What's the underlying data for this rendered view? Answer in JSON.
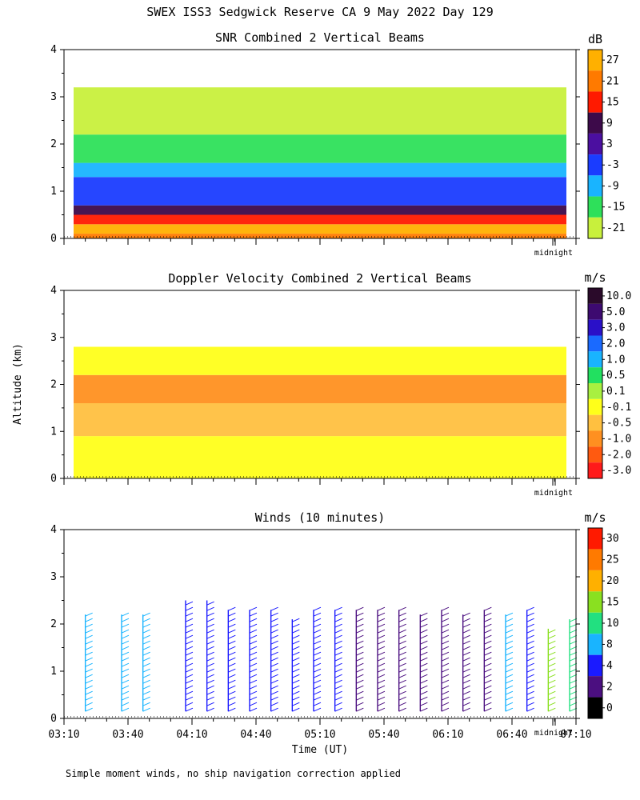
{
  "title": "SWEX ISS3 Sedgwick Reserve CA   9 May 2022 Day 129",
  "ylabel": "Altitude (km)",
  "xlabel": "Time (UT)",
  "midnight_label": "midnight",
  "footnote": "Simple moment winds, no ship navigation correction applied",
  "x_ticks": [
    "03:10",
    "03:40",
    "04:10",
    "04:40",
    "05:10",
    "05:40",
    "06:10",
    "06:40",
    "07:10"
  ],
  "chart_data": [
    {
      "type": "heatmap",
      "title": "SNR Combined 2 Vertical Beams",
      "unit": "dB",
      "xlim": [
        "03:10",
        "07:10"
      ],
      "ylim": [
        0,
        4
      ],
      "y_ticks": [
        "0",
        "1",
        "2",
        "3",
        "4"
      ],
      "colorbar": {
        "labels": [
          "27",
          "21",
          "15",
          "9",
          "3",
          "-3",
          "-9",
          "-15",
          "-21"
        ],
        "colors": [
          "#ffb000",
          "#ff7a00",
          "#ff1a00",
          "#3d0a4a",
          "#4b0fa0",
          "#1a3cff",
          "#19b4ff",
          "#2ee05a",
          "#c8f03c"
        ]
      },
      "layers": [
        {
          "from_km": 0.0,
          "to_km": 0.1,
          "level": "21"
        },
        {
          "from_km": 0.1,
          "to_km": 0.3,
          "level": "27"
        },
        {
          "from_km": 0.3,
          "to_km": 0.5,
          "level": "15"
        },
        {
          "from_km": 0.5,
          "to_km": 0.7,
          "level": "9"
        },
        {
          "from_km": 0.7,
          "to_km": 1.3,
          "level": "-3"
        },
        {
          "from_km": 1.3,
          "to_km": 1.6,
          "level": "-9"
        },
        {
          "from_km": 1.6,
          "to_km": 2.2,
          "level": "-15"
        },
        {
          "from_km": 2.2,
          "to_km": 3.2,
          "level": "-21"
        }
      ]
    },
    {
      "type": "heatmap",
      "title": "Doppler Velocity Combined 2 Vertical Beams",
      "unit": "m/s",
      "xlim": [
        "03:10",
        "07:10"
      ],
      "ylim": [
        0,
        4
      ],
      "y_ticks": [
        "0",
        "1",
        "2",
        "3",
        "4"
      ],
      "colorbar": {
        "labels": [
          "10.0",
          "5.0",
          "3.0",
          "2.0",
          "1.0",
          "0.5",
          "0.1",
          "-0.1",
          "-0.5",
          "-1.0",
          "-2.0",
          "-3.0"
        ],
        "colors": [
          "#2a0a2a",
          "#3d0a70",
          "#2a10c8",
          "#1a6aff",
          "#19b4ff",
          "#22e060",
          "#a8f040",
          "#ffff1a",
          "#ffc040",
          "#ff9020",
          "#ff5a10",
          "#ff1a1a"
        ]
      },
      "layers": [
        {
          "from_km": 0.0,
          "to_km": 0.9,
          "level": "-0.1"
        },
        {
          "from_km": 0.9,
          "to_km": 1.6,
          "level": "-0.5"
        },
        {
          "from_km": 1.6,
          "to_km": 2.2,
          "level": "-1.0"
        },
        {
          "from_km": 2.2,
          "to_km": 2.8,
          "level": "-0.1"
        }
      ]
    },
    {
      "type": "scatter",
      "title": "Winds (10 minutes)",
      "unit": "m/s",
      "xlim": [
        "03:10",
        "07:10"
      ],
      "ylim": [
        0,
        4
      ],
      "y_ticks": [
        "0",
        "1",
        "2",
        "3",
        "4"
      ],
      "colorbar": {
        "labels": [
          "30",
          "25",
          "20",
          "15",
          "10",
          "8",
          "4",
          "2",
          "0"
        ],
        "colors": [
          "#ff1a00",
          "#ff7a00",
          "#ffb000",
          "#8ae020",
          "#22e080",
          "#19b4ff",
          "#1a1aff",
          "#4b0f80",
          "#000000"
        ]
      },
      "profiles": [
        {
          "time": "03:20",
          "top_km": 2.2,
          "speed": 8
        },
        {
          "time": "03:37",
          "top_km": 2.2,
          "speed": 8
        },
        {
          "time": "03:47",
          "top_km": 2.2,
          "speed": 8
        },
        {
          "time": "04:07",
          "top_km": 2.5,
          "speed": 4
        },
        {
          "time": "04:17",
          "top_km": 2.5,
          "speed": 4
        },
        {
          "time": "04:27",
          "top_km": 2.3,
          "speed": 4
        },
        {
          "time": "04:37",
          "top_km": 2.3,
          "speed": 4
        },
        {
          "time": "04:47",
          "top_km": 2.3,
          "speed": 4
        },
        {
          "time": "04:57",
          "top_km": 2.1,
          "speed": 4
        },
        {
          "time": "05:07",
          "top_km": 2.3,
          "speed": 4
        },
        {
          "time": "05:17",
          "top_km": 2.3,
          "speed": 4
        },
        {
          "time": "05:27",
          "top_km": 2.3,
          "speed": 2
        },
        {
          "time": "05:37",
          "top_km": 2.3,
          "speed": 2
        },
        {
          "time": "05:47",
          "top_km": 2.3,
          "speed": 2
        },
        {
          "time": "05:57",
          "top_km": 2.2,
          "speed": 2
        },
        {
          "time": "06:07",
          "top_km": 2.3,
          "speed": 2
        },
        {
          "time": "06:17",
          "top_km": 2.2,
          "speed": 2
        },
        {
          "time": "06:27",
          "top_km": 2.3,
          "speed": 2
        },
        {
          "time": "06:37",
          "top_km": 2.2,
          "speed": 8
        },
        {
          "time": "06:47",
          "top_km": 2.3,
          "speed": 4
        },
        {
          "time": "06:57",
          "top_km": 1.9,
          "speed": 15
        },
        {
          "time": "07:07",
          "top_km": 2.1,
          "speed": 10
        }
      ]
    }
  ]
}
